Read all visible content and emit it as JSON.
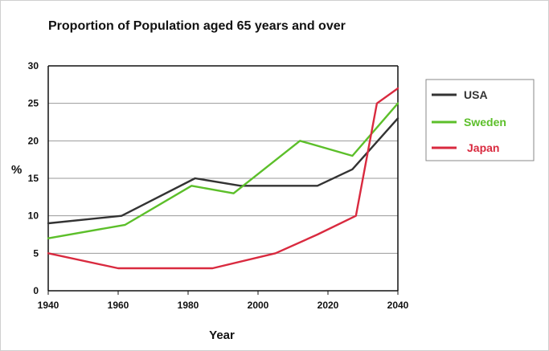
{
  "chart_data": {
    "type": "line",
    "title": "Proportion of Population aged 65 years and over",
    "xlabel": "Year",
    "ylabel": "%",
    "xlim": [
      1940,
      2040
    ],
    "ylim": [
      0,
      30
    ],
    "x_ticks": [
      "1940",
      "1960",
      "1980",
      "2000",
      "2020",
      "2040"
    ],
    "y_ticks": [
      "0",
      "5",
      "10",
      "15",
      "20",
      "25",
      "30"
    ],
    "grid": "horizontal",
    "legend_position": "right",
    "series": [
      {
        "name": "USA",
        "color": "#333333",
        "x": [
          1940,
          1961,
          1982,
          1995,
          2005,
          2017,
          2027,
          2040
        ],
        "y": [
          9,
          10,
          15,
          14,
          14,
          14,
          16.2,
          23
        ]
      },
      {
        "name": "Sweden",
        "color": "#5cbf2a",
        "x": [
          1940,
          1962,
          1981,
          1993,
          2012,
          2027,
          2040
        ],
        "y": [
          7,
          8.8,
          14,
          13,
          20,
          18,
          25
        ]
      },
      {
        "name": "Japan",
        "color": "#d92a3f",
        "x": [
          1940,
          1960,
          1987,
          2005,
          2017,
          2028,
          2034,
          2040
        ],
        "y": [
          5,
          3,
          3,
          5,
          7.5,
          10,
          25,
          27
        ]
      }
    ]
  }
}
